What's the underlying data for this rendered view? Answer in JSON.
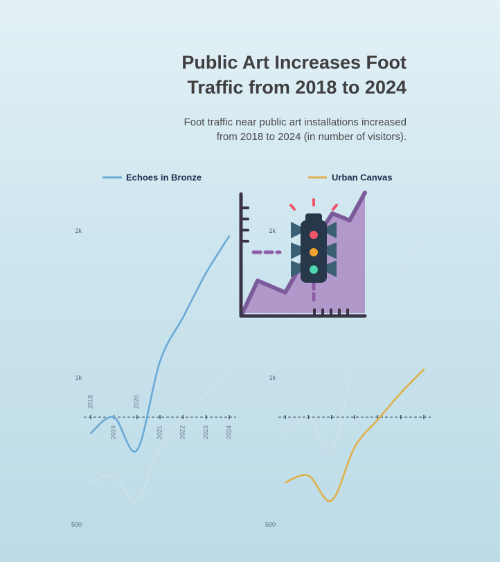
{
  "header": {
    "title_line1": "Public Art Increases Foot",
    "title_line2": "Traffic from 2018 to 2024",
    "subtitle_line1": "Foot traffic near public art installations increased",
    "subtitle_line2": "from 2018 to 2024 (in number of visitors)."
  },
  "chart_data": {
    "type": "line",
    "title": "Public Art Increases Foot Traffic from 2018 to 2024",
    "subtitle": "Foot traffic near public art installations increased from 2018 to 2024 (in number of visitors).",
    "x": [
      "2018",
      "2019",
      "2020",
      "2021",
      "2022",
      "2023",
      "2024"
    ],
    "ylim": [
      500,
      2000
    ],
    "y_scale": "log",
    "y_ticks": [
      {
        "value": 500,
        "label": "500"
      },
      {
        "value": 1000,
        "label": "1k"
      },
      {
        "value": 2000,
        "label": "2k"
      }
    ],
    "legend_position": "top",
    "series": [
      {
        "name": "Echoes in Bronze",
        "color": "#6aaad6",
        "values": [
          770,
          830,
          710,
          1080,
          1330,
          1640,
          1950
        ]
      },
      {
        "name": "Urban Canvas",
        "color": "#e0b04a",
        "values": [
          610,
          630,
          560,
          720,
          820,
          930,
          1040
        ]
      }
    ],
    "baseline_value": 830,
    "grid": true
  },
  "icon": {
    "name": "traffic-light-chart-icon"
  }
}
